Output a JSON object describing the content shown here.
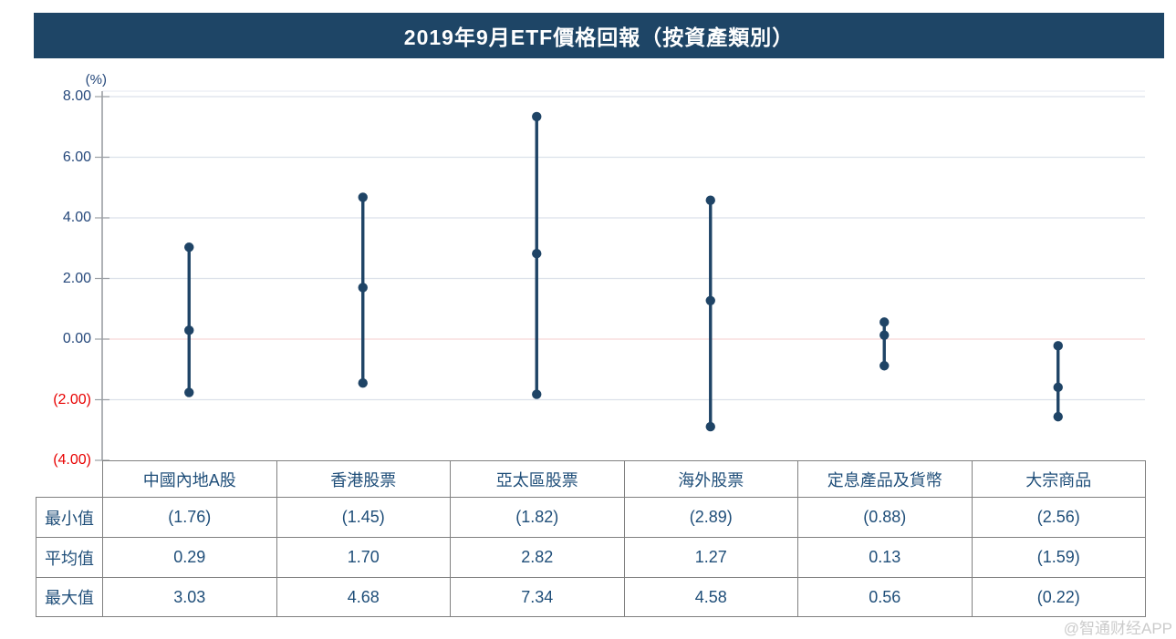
{
  "title": "2019年9月ETF價格回報（按資產類別）",
  "watermark": "@智通财经APP",
  "chart_data": {
    "type": "range-dot",
    "title": "2019年9月ETF價格回報（按資產類別）",
    "unit_label": "(%)",
    "xlabel": "",
    "ylabel": "(%)",
    "ylim": [
      -4,
      8
    ],
    "grid": true,
    "legend": false,
    "categories": [
      "中國內地A股",
      "香港股票",
      "亞太區股票",
      "海外股票",
      "定息產品及貨幣",
      "大宗商品"
    ],
    "series": [
      {
        "name": "最小值",
        "values": [
          -1.76,
          -1.45,
          -1.82,
          -2.89,
          -0.88,
          -2.56
        ]
      },
      {
        "name": "平均值",
        "values": [
          0.29,
          1.7,
          2.82,
          1.27,
          0.13,
          -1.59
        ]
      },
      {
        "name": "最大值",
        "values": [
          3.03,
          4.68,
          7.34,
          4.58,
          0.56,
          -0.22
        ]
      }
    ],
    "y_ticks": [
      {
        "value": 8,
        "label": "8.00"
      },
      {
        "value": 6,
        "label": "6.00"
      },
      {
        "value": 4,
        "label": "4.00"
      },
      {
        "value": 2,
        "label": "2.00"
      },
      {
        "value": 0,
        "label": "0.00"
      },
      {
        "value": -2,
        "label": "(2.00)"
      },
      {
        "value": -4,
        "label": "(4.00)"
      }
    ]
  },
  "table": {
    "row_headers": [
      "最小值",
      "平均值",
      "最大值"
    ],
    "columns": [
      "中國內地A股",
      "香港股票",
      "亞太區股票",
      "海外股票",
      "定息產品及貨幣",
      "大宗商品"
    ],
    "rows": [
      [
        "(1.76)",
        "(1.45)",
        "(1.82)",
        "(2.89)",
        "(0.88)",
        "(2.56)"
      ],
      [
        "0.29",
        "1.70",
        "2.82",
        "1.27",
        "0.13",
        "(1.59)"
      ],
      [
        "3.03",
        "4.68",
        "7.34",
        "4.58",
        "0.56",
        "(0.22)"
      ]
    ]
  },
  "colors": {
    "title_bar_bg": "#1E4566",
    "title_text": "#FFFFFF",
    "series": "#1F4466",
    "axis_label": "#24477A",
    "axis_label_negative": "#E80000",
    "axis_line": "#9B9FA4",
    "gridline": "#DCE1EA",
    "plot_top_border": "#EAEDF3",
    "zero_line": "#F8D8D8",
    "table_border": "#808080",
    "table_text": "#1F4E79",
    "watermark_text": "#C6C6C6"
  }
}
